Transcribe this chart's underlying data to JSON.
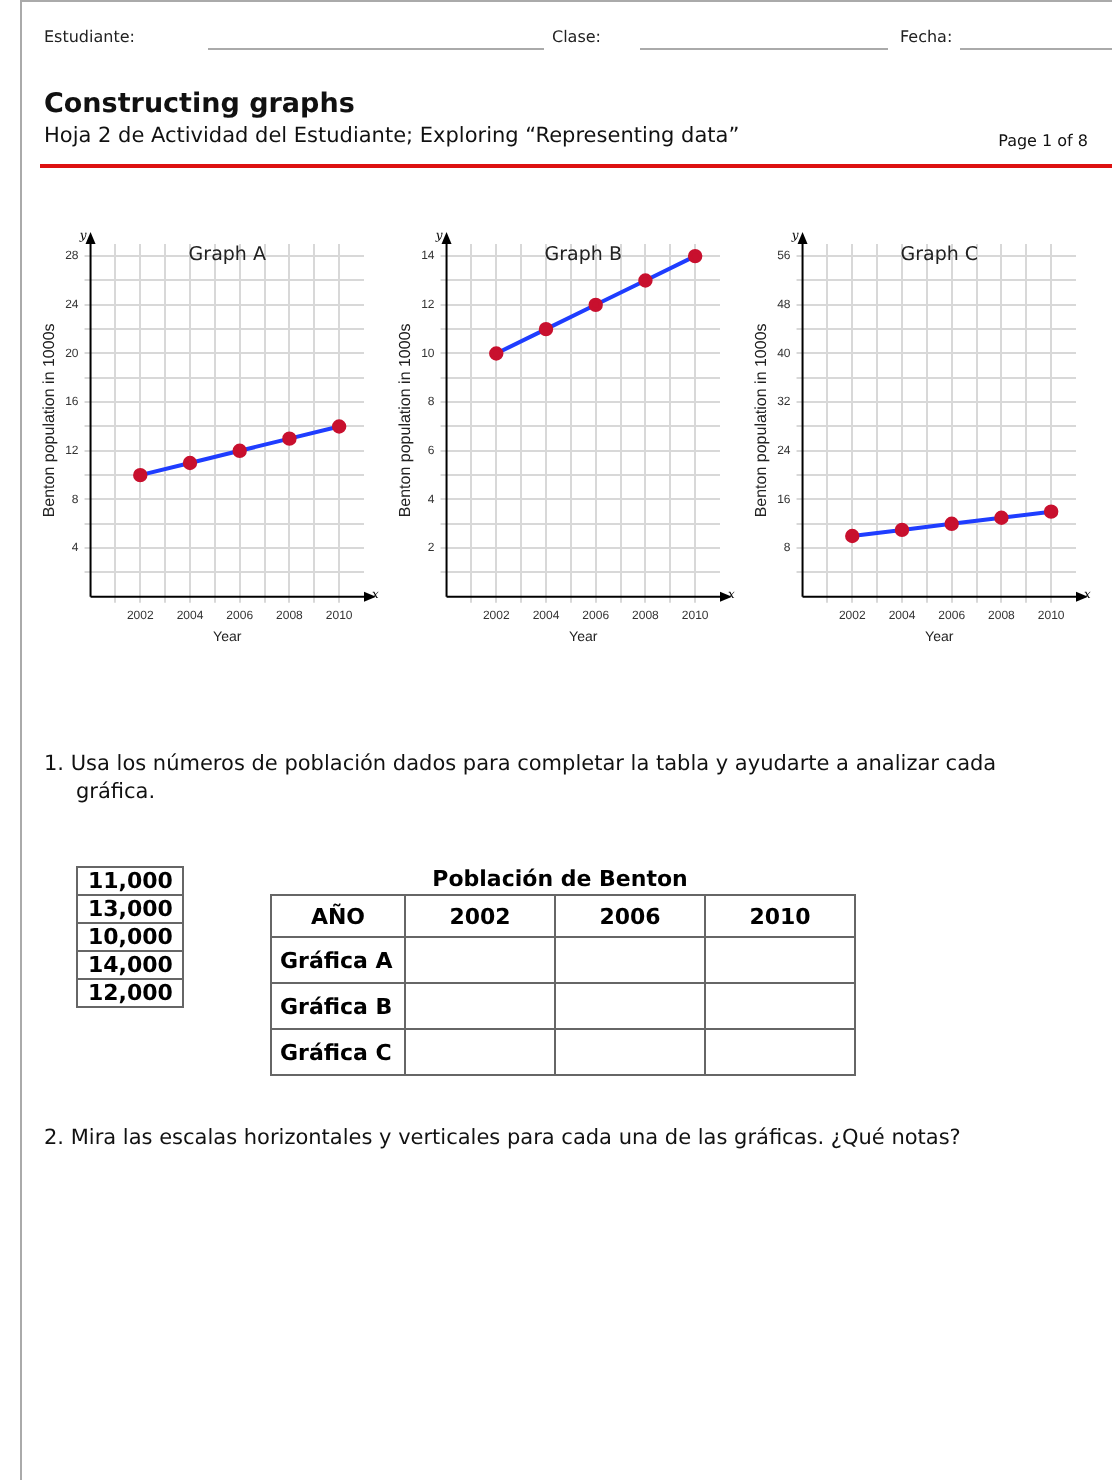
{
  "chart_data": [
    {
      "type": "other",
      "title": "Constructing graphs",
      "subtitle": "Hoja 2 de Actividad del Estudiante; Exploring “Representing data”",
      "annotations": [
        "Estudiante:",
        "Clase:",
        "Fecha:",
        "Page 1 of 8"
      ]
    },
    {
      "type": "line",
      "title": "Graph A",
      "xlabel": "Year",
      "ylabel": "Benton population in 1000s",
      "annotations": [
        "y",
        "x"
      ],
      "x": [
        2002,
        2004,
        2006,
        2008,
        2010
      ],
      "series": [
        {
          "color": "#1f3dff",
          "values": [
            10,
            11,
            12,
            13,
            14
          ]
        }
      ],
      "xlim": [
        2000,
        2011
      ],
      "xticks": [
        {
          "value": 2001,
          "label": null
        },
        2002,
        {
          "value": 2003,
          "label": null
        },
        2004,
        {
          "value": 2005,
          "label": null
        },
        2006,
        {
          "value": 2007,
          "label": null
        },
        2008,
        {
          "value": 2009,
          "label": null
        },
        2010
      ],
      "ylim": [
        0,
        29
      ],
      "yticks": [
        {
          "value": 2,
          "label": null
        },
        4,
        {
          "value": 6,
          "label": null
        },
        8,
        {
          "value": 10,
          "label": null
        },
        12,
        {
          "value": 14,
          "label": null
        },
        16,
        {
          "value": 18,
          "label": null
        },
        20,
        {
          "value": 22,
          "label": null
        },
        24,
        {
          "value": 26,
          "label": null
        },
        28
      ],
      "grid": true,
      "legend": false,
      "marker": "circle",
      "line_style": "solid"
    },
    {
      "type": "line",
      "title": "Graph B",
      "xlabel": "Year",
      "ylabel": "Benton population in 1000s",
      "annotations": [
        "y",
        "x"
      ],
      "x": [
        2002,
        2004,
        2006,
        2008,
        2010
      ],
      "series": [
        {
          "color": "#1f3dff",
          "values": [
            10,
            11,
            12,
            13,
            14
          ]
        }
      ],
      "xlim": [
        2000,
        2011
      ],
      "xticks": [
        {
          "value": 2001,
          "label": null
        },
        2002,
        {
          "value": 2003,
          "label": null
        },
        2004,
        {
          "value": 2005,
          "label": null
        },
        2006,
        {
          "value": 2007,
          "label": null
        },
        2008,
        {
          "value": 2009,
          "label": null
        },
        2010
      ],
      "ylim": [
        0,
        14.5
      ],
      "yticks": [
        {
          "value": 1,
          "label": null
        },
        2,
        {
          "value": 3,
          "label": null
        },
        4,
        {
          "value": 5,
          "label": null
        },
        6,
        {
          "value": 7,
          "label": null
        },
        8,
        {
          "value": 9,
          "label": null
        },
        10,
        {
          "value": 11,
          "label": null
        },
        12,
        {
          "value": 13,
          "label": null
        },
        14
      ],
      "grid": true,
      "legend": false,
      "marker": "circle",
      "line_style": "solid"
    },
    {
      "type": "line",
      "title": "Graph C",
      "xlabel": "Year",
      "ylabel": "Benton population in 1000s",
      "annotations": [
        "y",
        "x"
      ],
      "x": [
        2002,
        2004,
        2006,
        2008,
        2010
      ],
      "series": [
        {
          "color": "#1f3dff",
          "values": [
            10,
            11,
            12,
            13,
            14
          ]
        }
      ],
      "xlim": [
        2000,
        2011
      ],
      "xticks": [
        {
          "value": 2001,
          "label": null
        },
        2002,
        {
          "value": 2003,
          "label": null
        },
        2004,
        {
          "value": 2005,
          "label": null
        },
        2006,
        {
          "value": 2007,
          "label": null
        },
        2008,
        {
          "value": 2009,
          "label": null
        },
        2010
      ],
      "ylim": [
        0,
        58
      ],
      "yticks": [
        {
          "value": 4,
          "label": null
        },
        8,
        {
          "value": 12,
          "label": null
        },
        16,
        {
          "value": 20,
          "label": null
        },
        24,
        {
          "value": 28,
          "label": null
        },
        32,
        {
          "value": 36,
          "label": null
        },
        40,
        {
          "value": 44,
          "label": null
        },
        48,
        {
          "value": 52,
          "label": null
        },
        56
      ],
      "grid": true,
      "legend": false,
      "marker": "circle",
      "line_style": "solid"
    },
    {
      "type": "other",
      "title": "Población de Benton",
      "xlabel": "AÑO",
      "categories": [
        "2002",
        "2006",
        "2010"
      ],
      "y_categories": [
        "Gráfica A",
        "Gráfica B",
        "Gráfica C"
      ],
      "annotations": [
        "1. Usa los números de población dados para completar la tabla y ayudarte a analizar cada gráfica.",
        "11,000",
        "13,000",
        "10,000",
        "14,000",
        "12,000",
        "2. Mira las escalas horizontales y verticales para cada una de las gráficas. ¿Qué notas?"
      ]
    }
  ]
}
